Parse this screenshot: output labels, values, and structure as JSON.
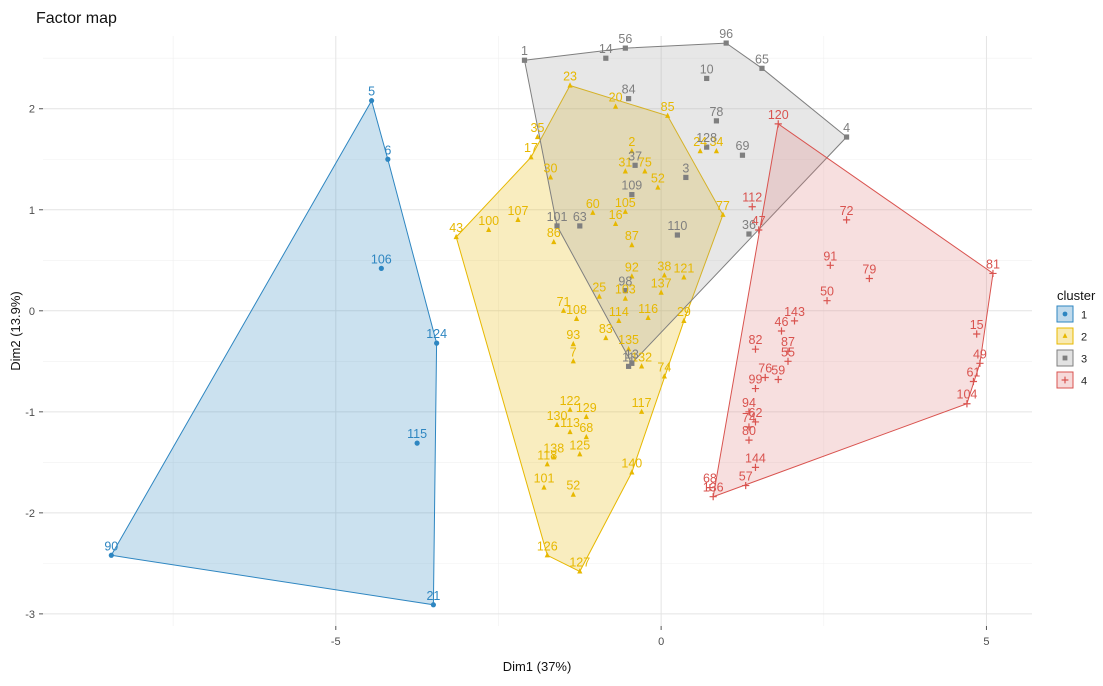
{
  "chart_data": {
    "type": "scatter",
    "title": "Factor map",
    "xlabel": "Dim1 (37%)",
    "ylabel": "Dim2 (13.9%)",
    "xlim": [
      -9.5,
      5.7
    ],
    "ylim": [
      -3.12,
      2.72
    ],
    "x_ticks": [
      {
        "value": -5,
        "label": "-5"
      },
      {
        "value": 0,
        "label": "0"
      },
      {
        "value": 5,
        "label": "5"
      }
    ],
    "y_ticks": [
      {
        "value": -3,
        "label": "-3"
      },
      {
        "value": -2,
        "label": "-2"
      },
      {
        "value": -1,
        "label": "-1"
      },
      {
        "value": 0,
        "label": "0"
      },
      {
        "value": 1,
        "label": "1"
      },
      {
        "value": 2,
        "label": "2"
      }
    ],
    "grid": true,
    "legend": {
      "title": "cluster",
      "position": "right"
    },
    "series": [
      {
        "name": "1",
        "color": "#2E86C1",
        "fill": "#2E86C1",
        "marker": "circle",
        "hull": [
          "90",
          "5",
          "6",
          "124",
          "21"
        ],
        "points": [
          {
            "label": "5",
            "x": -4.45,
            "y": 2.08
          },
          {
            "label": "6",
            "x": -4.2,
            "y": 1.5
          },
          {
            "label": "106",
            "x": -4.3,
            "y": 0.42
          },
          {
            "label": "124",
            "x": -3.45,
            "y": -0.32
          },
          {
            "label": "115",
            "x": -3.75,
            "y": -1.31
          },
          {
            "label": "90",
            "x": -8.45,
            "y": -2.42
          },
          {
            "label": "21",
            "x": -3.5,
            "y": -2.91
          }
        ]
      },
      {
        "name": "2",
        "color": "#E7B800",
        "fill": "#E7B800",
        "marker": "triangle",
        "hull": [
          "43",
          "17",
          "23",
          "85",
          "77",
          "29",
          "140",
          "127",
          "126"
        ],
        "points": [
          {
            "label": "23",
            "x": -1.4,
            "y": 2.23
          },
          {
            "label": "20",
            "x": -0.7,
            "y": 2.02
          },
          {
            "label": "85",
            "x": 0.1,
            "y": 1.93
          },
          {
            "label": "35",
            "x": -1.9,
            "y": 1.72
          },
          {
            "label": "17",
            "x": -2.0,
            "y": 1.52
          },
          {
            "label": "2",
            "x": -0.45,
            "y": 1.58
          },
          {
            "label": "24",
            "x": 0.6,
            "y": 1.58
          },
          {
            "label": "34",
            "x": 0.85,
            "y": 1.58
          },
          {
            "label": "30",
            "x": -1.7,
            "y": 1.32
          },
          {
            "label": "31",
            "x": -0.55,
            "y": 1.38
          },
          {
            "label": "75",
            "x": -0.25,
            "y": 1.38
          },
          {
            "label": "52",
            "x": -0.05,
            "y": 1.22
          },
          {
            "label": "77",
            "x": 0.95,
            "y": 0.95
          },
          {
            "label": "60",
            "x": -1.05,
            "y": 0.97
          },
          {
            "label": "107",
            "x": -2.2,
            "y": 0.9
          },
          {
            "label": "100",
            "x": -2.65,
            "y": 0.8
          },
          {
            "label": "105",
            "x": -0.55,
            "y": 0.98
          },
          {
            "label": "43",
            "x": -3.15,
            "y": 0.73
          },
          {
            "label": "16",
            "x": -0.7,
            "y": 0.86
          },
          {
            "label": "87",
            "x": -0.45,
            "y": 0.65
          },
          {
            "label": "86",
            "x": -1.65,
            "y": 0.68
          },
          {
            "label": "92",
            "x": -0.45,
            "y": 0.34
          },
          {
            "label": "38",
            "x": 0.05,
            "y": 0.35
          },
          {
            "label": "121",
            "x": 0.35,
            "y": 0.33
          },
          {
            "label": "137",
            "x": 0.0,
            "y": 0.18
          },
          {
            "label": "25",
            "x": -0.95,
            "y": 0.14
          },
          {
            "label": "103",
            "x": -0.55,
            "y": 0.12
          },
          {
            "label": "71",
            "x": -1.5,
            "y": 0.0
          },
          {
            "label": "108",
            "x": -1.3,
            "y": -0.08
          },
          {
            "label": "116",
            "x": -0.2,
            "y": -0.07
          },
          {
            "label": "114",
            "x": -0.65,
            "y": -0.1
          },
          {
            "label": "29",
            "x": 0.35,
            "y": -0.1
          },
          {
            "label": "83",
            "x": -0.85,
            "y": -0.27
          },
          {
            "label": "93",
            "x": -1.35,
            "y": -0.33
          },
          {
            "label": "135",
            "x": -0.5,
            "y": -0.38
          },
          {
            "label": "7",
            "x": -1.35,
            "y": -0.5
          },
          {
            "label": "132",
            "x": -0.3,
            "y": -0.55
          },
          {
            "label": "74",
            "x": 0.05,
            "y": -0.65
          },
          {
            "label": "122",
            "x": -1.4,
            "y": -0.98
          },
          {
            "label": "129",
            "x": -1.15,
            "y": -1.05
          },
          {
            "label": "117",
            "x": -0.3,
            "y": -1.0
          },
          {
            "label": "130",
            "x": -1.6,
            "y": -1.13
          },
          {
            "label": "113",
            "x": -1.4,
            "y": -1.2
          },
          {
            "label": "68",
            "x": -1.15,
            "y": -1.25
          },
          {
            "label": "125",
            "x": -1.25,
            "y": -1.42
          },
          {
            "label": "138",
            "x": -1.65,
            "y": -1.45
          },
          {
            "label": "118",
            "x": -1.75,
            "y": -1.52
          },
          {
            "label": "140",
            "x": -0.45,
            "y": -1.6
          },
          {
            "label": "101",
            "x": -1.8,
            "y": -1.75
          },
          {
            "label": "52",
            "x": -1.35,
            "y": -1.82
          },
          {
            "label": "126",
            "x": -1.75,
            "y": -2.42
          },
          {
            "label": "127",
            "x": -1.25,
            "y": -2.58
          }
        ]
      },
      {
        "name": "3",
        "color": "#7F7F7F",
        "fill": "#9E9E9E",
        "marker": "square",
        "hull": [
          "1",
          "56",
          "96",
          "65",
          "4",
          "13",
          "101"
        ],
        "points": [
          {
            "label": "1",
            "x": -2.1,
            "y": 2.48
          },
          {
            "label": "14",
            "x": -0.85,
            "y": 2.5
          },
          {
            "label": "56",
            "x": -0.55,
            "y": 2.6
          },
          {
            "label": "96",
            "x": 1.0,
            "y": 2.65
          },
          {
            "label": "65",
            "x": 1.55,
            "y": 2.4
          },
          {
            "label": "10",
            "x": 0.7,
            "y": 2.3
          },
          {
            "label": "84",
            "x": -0.5,
            "y": 2.1
          },
          {
            "label": "78",
            "x": 0.85,
            "y": 1.88
          },
          {
            "label": "4",
            "x": 2.85,
            "y": 1.72
          },
          {
            "label": "128",
            "x": 0.7,
            "y": 1.62
          },
          {
            "label": "69",
            "x": 1.25,
            "y": 1.54
          },
          {
            "label": "37",
            "x": -0.4,
            "y": 1.44
          },
          {
            "label": "3",
            "x": 0.38,
            "y": 1.32
          },
          {
            "label": "109",
            "x": -0.45,
            "y": 1.15
          },
          {
            "label": "101",
            "x": -1.6,
            "y": 0.84
          },
          {
            "label": "63",
            "x": -1.25,
            "y": 0.84
          },
          {
            "label": "110",
            "x": 0.25,
            "y": 0.75
          },
          {
            "label": "36",
            "x": 1.35,
            "y": 0.76
          },
          {
            "label": "98",
            "x": -0.55,
            "y": 0.2
          },
          {
            "label": "13",
            "x": -0.45,
            "y": -0.52
          },
          {
            "label": "11",
            "x": -0.5,
            "y": -0.55
          }
        ]
      },
      {
        "name": "4",
        "color": "#D9534F",
        "fill": "#E08080",
        "marker": "plus",
        "hull": [
          "120",
          "81",
          "49",
          "104",
          "136"
        ],
        "points": [
          {
            "label": "120",
            "x": 1.8,
            "y": 1.85
          },
          {
            "label": "112",
            "x": 1.4,
            "y": 1.03
          },
          {
            "label": "47",
            "x": 1.5,
            "y": 0.8
          },
          {
            "label": "72",
            "x": 2.85,
            "y": 0.9
          },
          {
            "label": "91",
            "x": 2.6,
            "y": 0.45
          },
          {
            "label": "79",
            "x": 3.2,
            "y": 0.32
          },
          {
            "label": "50",
            "x": 2.55,
            "y": 0.1
          },
          {
            "label": "81",
            "x": 5.1,
            "y": 0.37
          },
          {
            "label": "143",
            "x": 2.05,
            "y": -0.1
          },
          {
            "label": "46",
            "x": 1.85,
            "y": -0.2
          },
          {
            "label": "15",
            "x": 4.85,
            "y": -0.23
          },
          {
            "label": "82",
            "x": 1.45,
            "y": -0.38
          },
          {
            "label": "87",
            "x": 1.95,
            "y": -0.4
          },
          {
            "label": "55",
            "x": 1.95,
            "y": -0.5
          },
          {
            "label": "49",
            "x": 4.9,
            "y": -0.52
          },
          {
            "label": "76",
            "x": 1.6,
            "y": -0.66
          },
          {
            "label": "59",
            "x": 1.8,
            "y": -0.68
          },
          {
            "label": "99",
            "x": 1.45,
            "y": -0.77
          },
          {
            "label": "61",
            "x": 4.8,
            "y": -0.7
          },
          {
            "label": "104",
            "x": 4.7,
            "y": -0.92
          },
          {
            "label": "94",
            "x": 1.35,
            "y": -1.0
          },
          {
            "label": "62",
            "x": 1.45,
            "y": -1.1
          },
          {
            "label": "74",
            "x": 1.35,
            "y": -1.15
          },
          {
            "label": "80",
            "x": 1.35,
            "y": -1.28
          },
          {
            "label": "144",
            "x": 1.45,
            "y": -1.55
          },
          {
            "label": "57",
            "x": 1.3,
            "y": -1.73
          },
          {
            "label": "68",
            "x": 0.75,
            "y": -1.75
          },
          {
            "label": "136",
            "x": 0.8,
            "y": -1.84
          }
        ]
      }
    ]
  }
}
